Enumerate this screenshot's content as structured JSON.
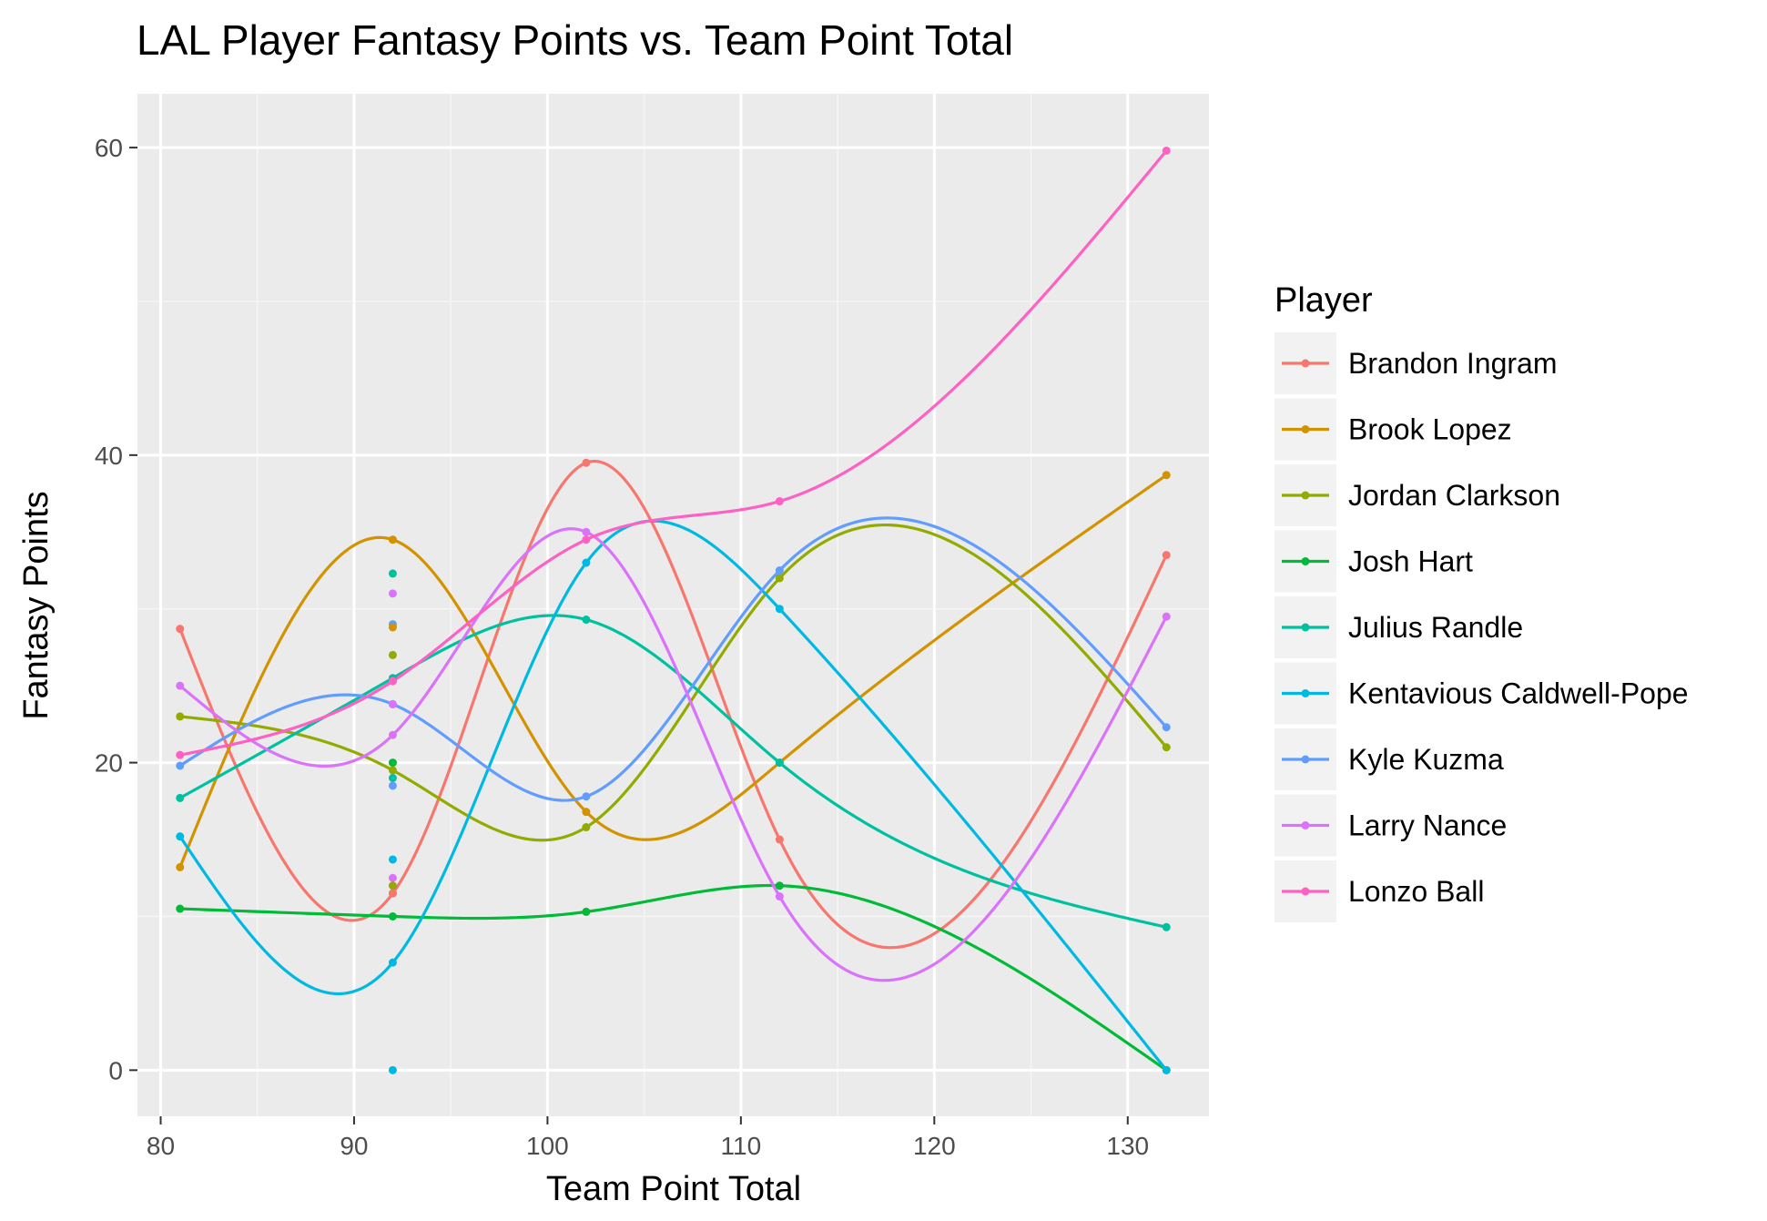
{
  "chart_data": {
    "type": "scatter",
    "title": "LAL Player Fantasy Points vs. Team Point Total",
    "xlabel": "Team Point Total",
    "ylabel": "Fantasy Points",
    "xlim": [
      78.8,
      134.2
    ],
    "ylim": [
      -3,
      63.5
    ],
    "xticks": [
      80,
      90,
      100,
      110,
      120,
      130
    ],
    "yticks": [
      0,
      20,
      40,
      60
    ],
    "grid": true,
    "smooth": true,
    "legend": {
      "title": "Player",
      "position": "right"
    },
    "x": [
      81,
      92,
      102,
      112,
      132
    ],
    "series": [
      {
        "name": "Brandon Ingram",
        "color": "#F8766D",
        "values": [
          28.7,
          11.5,
          39.5,
          15.0,
          33.5
        ]
      },
      {
        "name": "Brook Lopez",
        "color": "#D39200",
        "values": [
          13.2,
          34.5,
          16.8,
          20.0,
          38.7
        ]
      },
      {
        "name": "Jordan Clarkson",
        "color": "#93AA00",
        "values": [
          23.0,
          19.5,
          15.8,
          32.0,
          21.0
        ]
      },
      {
        "name": "Josh Hart",
        "color": "#00BA38",
        "values": [
          10.5,
          10.0,
          10.3,
          12.0,
          0.0
        ]
      },
      {
        "name": "Julius Randle",
        "color": "#00C19F",
        "values": [
          17.7,
          25.5,
          29.3,
          20.0,
          9.3
        ]
      },
      {
        "name": "Kentavious Caldwell-Pope",
        "color": "#00B9E3",
        "values": [
          15.2,
          7.0,
          33.0,
          30.0,
          0.0
        ]
      },
      {
        "name": "Kyle Kuzma",
        "color": "#619CFF",
        "values": [
          19.8,
          23.8,
          17.8,
          32.5,
          22.3
        ]
      },
      {
        "name": "Larry Nance",
        "color": "#DB72FB",
        "values": [
          25.0,
          21.8,
          35.0,
          11.3,
          29.5
        ]
      },
      {
        "name": "Lonzo Ball",
        "color": "#FF61C3",
        "values": [
          20.5,
          25.3,
          34.5,
          37.0,
          59.8
        ]
      }
    ],
    "extra_points_x92": [
      {
        "series": "Brook Lopez",
        "y": 34.5
      },
      {
        "series": "Julius Randle",
        "y": 32.3
      },
      {
        "series": "Larry Nance",
        "y": 31.0
      },
      {
        "series": "Kyle Kuzma",
        "y": 29.0
      },
      {
        "series": "Brook Lopez",
        "y": 28.8
      },
      {
        "series": "Jordan Clarkson",
        "y": 27.0
      },
      {
        "series": "Lonzo Ball",
        "y": 25.3
      },
      {
        "series": "Larry Nance",
        "y": 23.8
      },
      {
        "series": "Josh Hart",
        "y": 20.0
      },
      {
        "series": "Julius Randle",
        "y": 19.0
      },
      {
        "series": "Kyle Kuzma",
        "y": 18.5
      },
      {
        "series": "Kentavious Caldwell-Pope",
        "y": 13.7
      },
      {
        "series": "Larry Nance",
        "y": 12.5
      },
      {
        "series": "Jordan Clarkson",
        "y": 12.0
      },
      {
        "series": "Brandon Ingram",
        "y": 11.5
      },
      {
        "series": "Kentavious Caldwell-Pope",
        "y": 0.0
      }
    ]
  }
}
